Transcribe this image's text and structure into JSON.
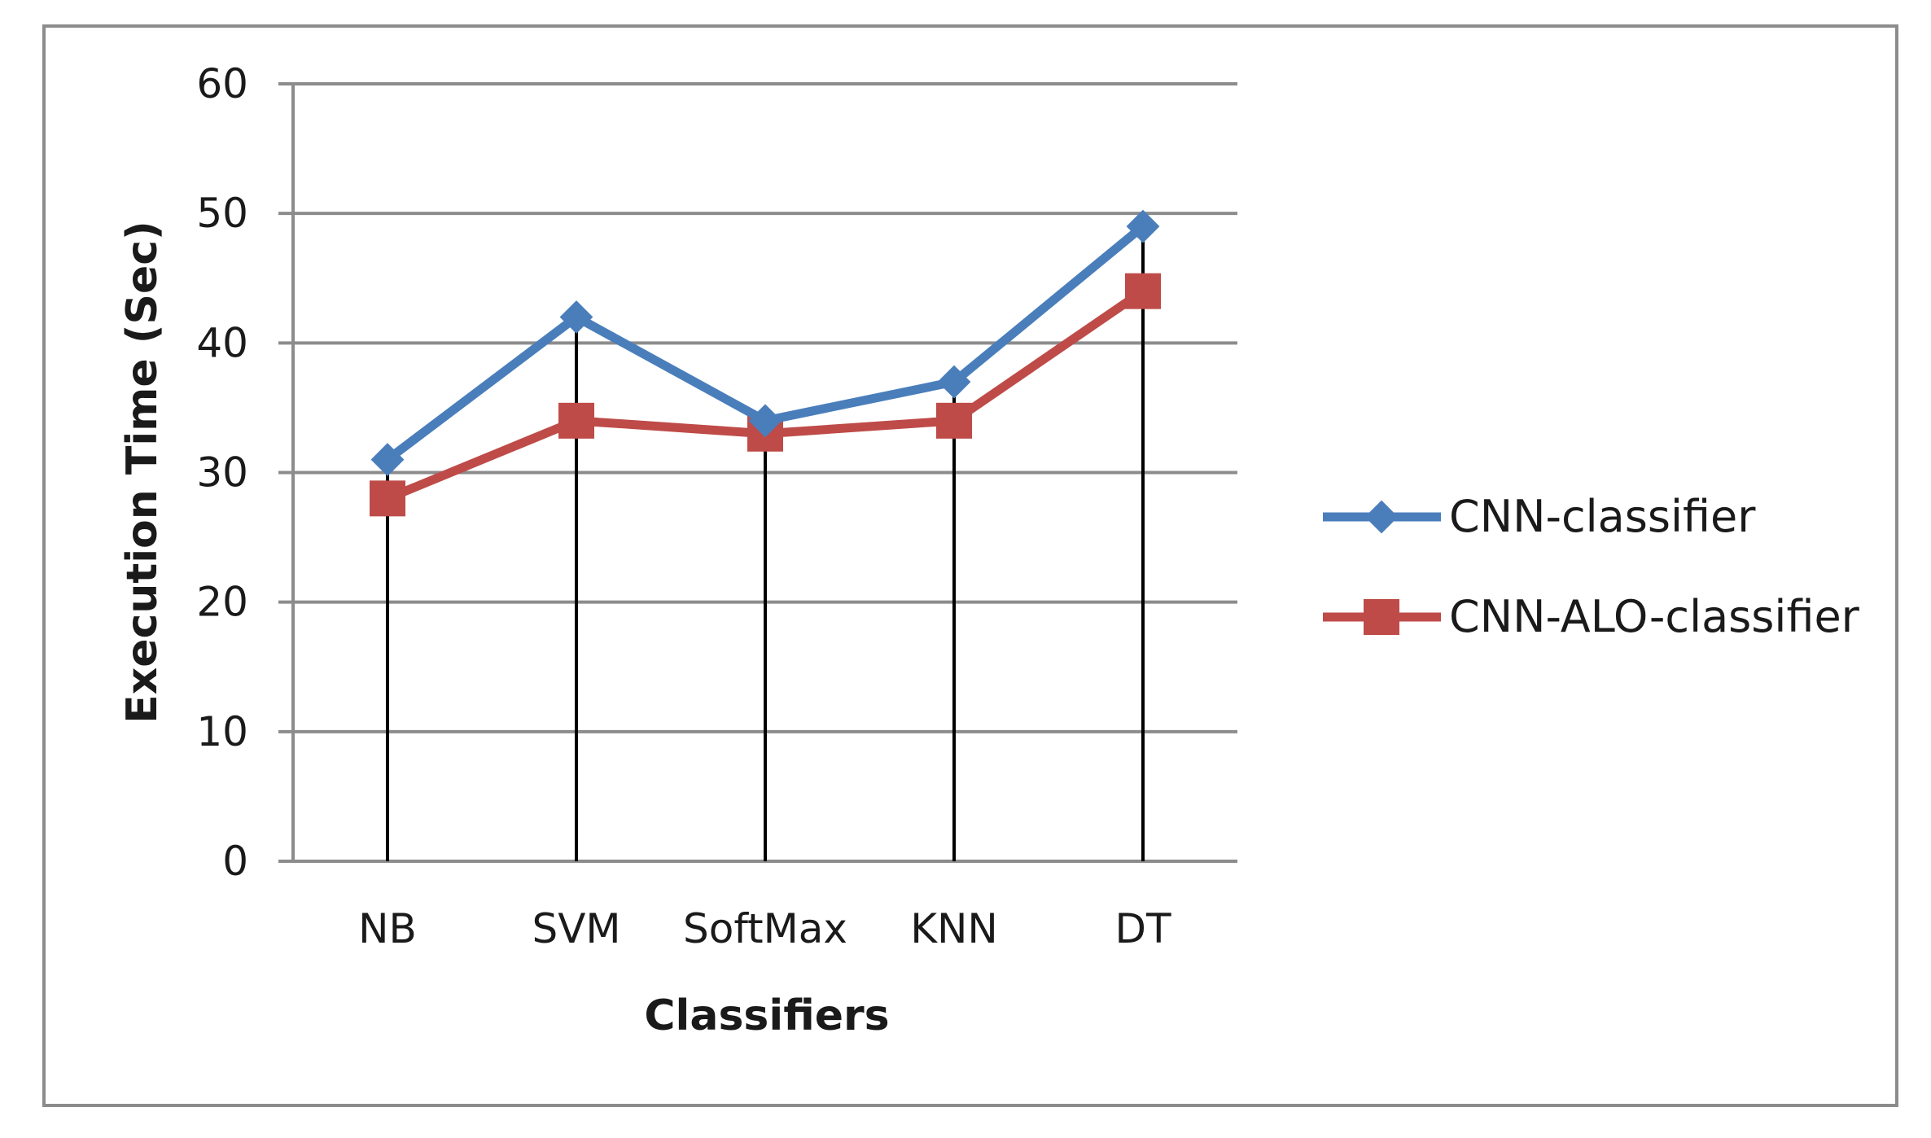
{
  "chart_data": {
    "type": "line",
    "title": "",
    "xlabel": "Classifiers",
    "ylabel": "Execution Time (Sec)",
    "categories": [
      "NB",
      "SVM",
      "SoftMax",
      "KNN",
      "DT"
    ],
    "ylim": [
      0,
      60
    ],
    "yticks": [
      0,
      10,
      20,
      30,
      40,
      50,
      60
    ],
    "grid": "horizontal",
    "legend_position": "right",
    "drop_lines": true,
    "series": [
      {
        "name": "CNN-classifier",
        "values": [
          31,
          42,
          34,
          37,
          49
        ],
        "color": "#4a7ebb",
        "marker": "diamond"
      },
      {
        "name": "CNN-ALO-classifier",
        "values": [
          28,
          34,
          33,
          34,
          44
        ],
        "color": "#be4b48",
        "marker": "square"
      }
    ]
  }
}
